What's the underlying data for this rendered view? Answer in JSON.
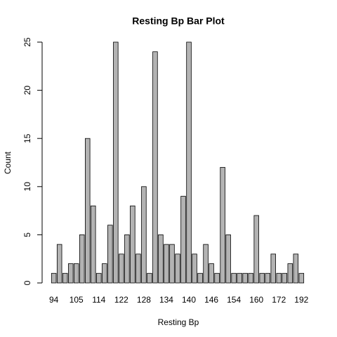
{
  "chart_data": {
    "type": "bar",
    "title": "Resting Bp Bar Plot",
    "x_label": "Resting Bp",
    "y_label": "Count",
    "categories": [
      "94",
      null,
      null,
      null,
      "105",
      null,
      null,
      null,
      "114",
      null,
      null,
      null,
      "122",
      null,
      null,
      null,
      "128",
      null,
      null,
      null,
      "134",
      null,
      null,
      null,
      "140",
      null,
      null,
      null,
      "146",
      null,
      null,
      null,
      "154",
      null,
      null,
      null,
      "160",
      null,
      null,
      null,
      "172",
      null,
      null,
      null,
      "192"
    ],
    "values": [
      1,
      4,
      1,
      2,
      2,
      5,
      15,
      8,
      1,
      2,
      6,
      25,
      3,
      5,
      8,
      3,
      10,
      1,
      24,
      5,
      4,
      4,
      3,
      9,
      25,
      3,
      1,
      4,
      2,
      1,
      12,
      5,
      1,
      1,
      1,
      1,
      7,
      1,
      1,
      3,
      1,
      1,
      2,
      3,
      1
    ],
    "color": "#b3b3b3",
    "ylim": [
      0,
      25
    ],
    "yticks": [
      0,
      5,
      10,
      15,
      20,
      25
    ]
  }
}
